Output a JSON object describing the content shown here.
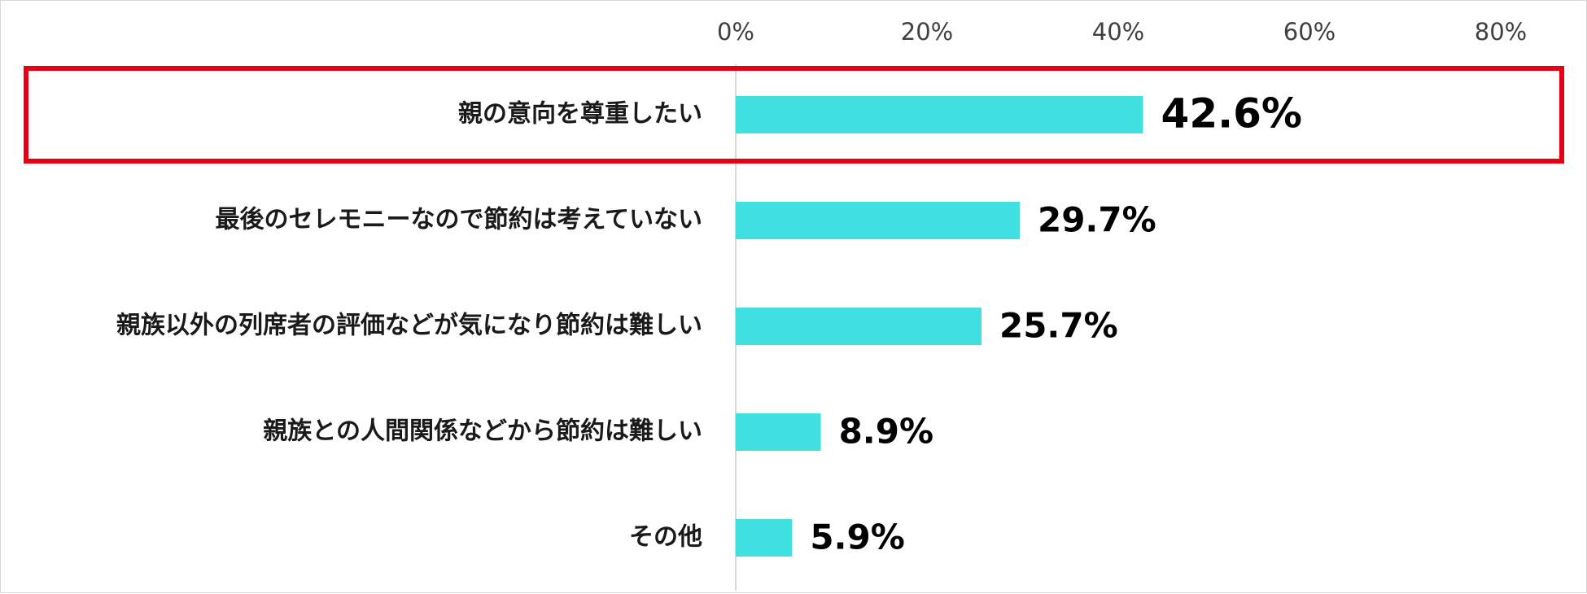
{
  "chart_data": {
    "type": "bar",
    "orientation": "horizontal",
    "categories": [
      "親の意向を尊重したい",
      "最後のセレモニーなので節約は考えていない",
      "親族以外の列席者の評価などが気になり節約は難しい",
      "親族との人間関係などから節約は難しい",
      "その他"
    ],
    "values": [
      42.6,
      29.7,
      25.7,
      8.9,
      5.9
    ],
    "value_labels": [
      "42.6%",
      "29.7%",
      "25.7%",
      "8.9%",
      "5.9%"
    ],
    "x_ticks": [
      0,
      20,
      40,
      60,
      80
    ],
    "x_tick_labels": [
      "0%",
      "20%",
      "40%",
      "60%",
      "80%"
    ],
    "xlim": [
      0,
      80
    ],
    "x_axis_position": "top",
    "grid": false,
    "highlighted_index": 0,
    "colors": {
      "bar": "#40E0E0",
      "highlight_border": "#E60012",
      "axis": "#d9d9d9"
    }
  }
}
